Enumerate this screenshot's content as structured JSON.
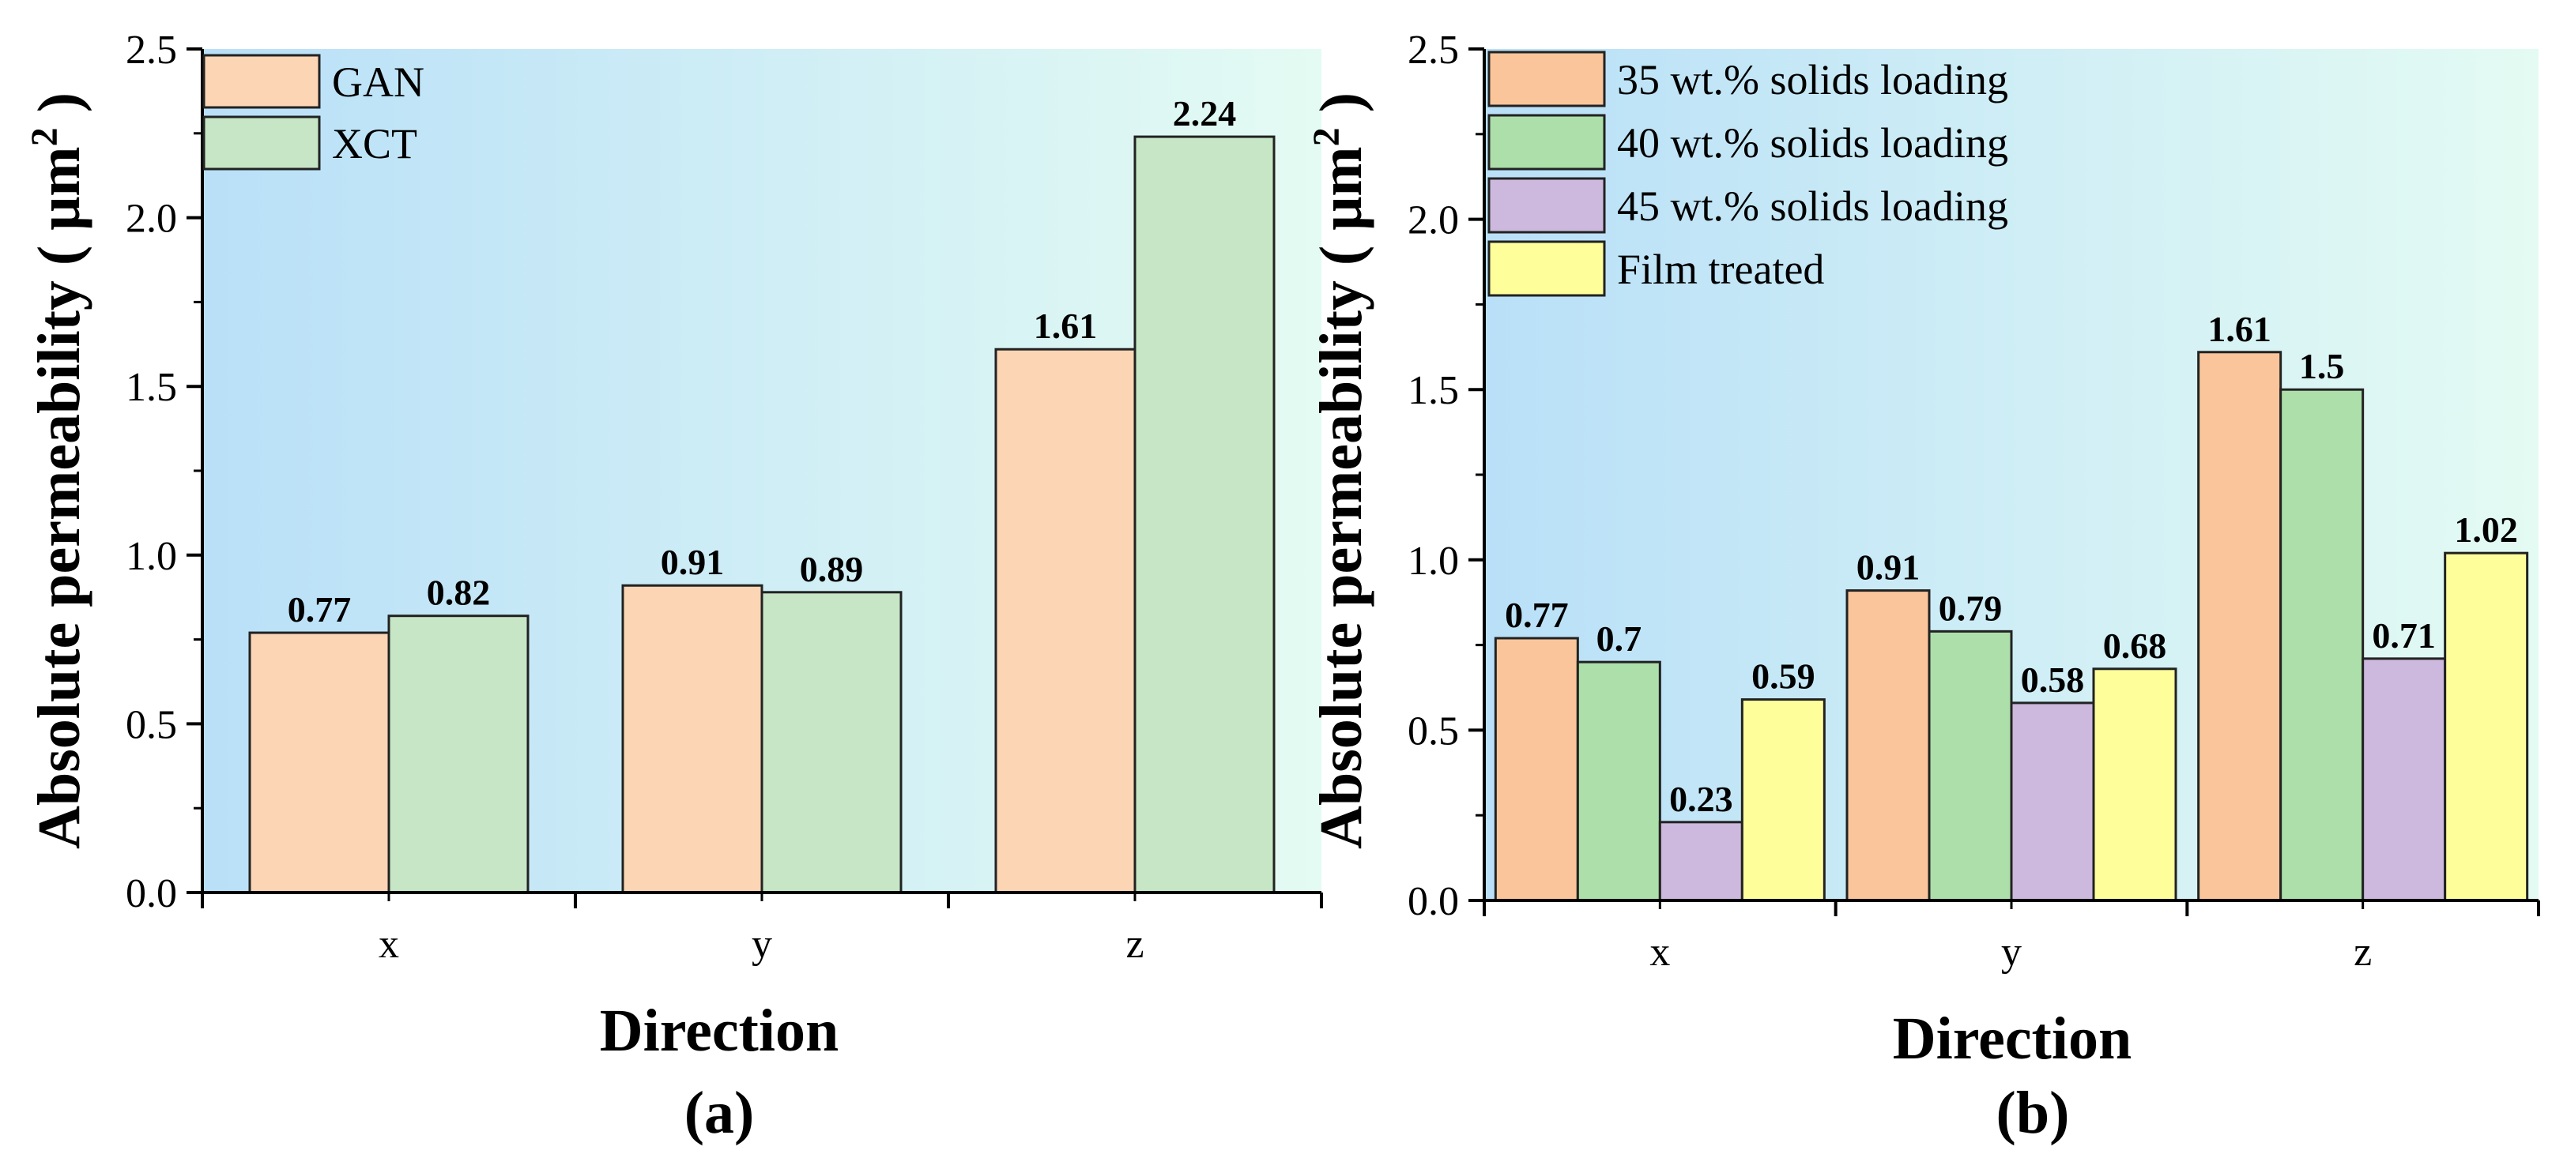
{
  "chart_data": [
    {
      "type": "bar",
      "panel_label": "(a)",
      "xlabel": "Direction",
      "ylabel": "Absolute permeability ( μm",
      "ylabel_sup": "2",
      "ylabel_close": ")",
      "ylim": [
        0,
        2.5
      ],
      "yticks": [
        "0.0",
        "0.5",
        "1.0",
        "1.5",
        "2.0",
        "2.5"
      ],
      "categories": [
        "x",
        "y",
        "z"
      ],
      "legend_position": "top-left",
      "series": [
        {
          "name": "GAN",
          "color": "#fcd5b5",
          "values": [
            0.77,
            0.91,
            1.61
          ],
          "labels": [
            "0.77",
            "0.91",
            "1.61"
          ]
        },
        {
          "name": "XCT",
          "color": "#c6e6c6",
          "values": [
            0.82,
            0.89,
            2.24
          ],
          "labels": [
            "0.82",
            "0.89",
            "2.24"
          ]
        }
      ]
    },
    {
      "type": "bar",
      "panel_label": "(b)",
      "xlabel": "Direction",
      "ylabel": "Absolute permeability ( μm",
      "ylabel_sup": "2",
      "ylabel_close": ")",
      "ylim": [
        0,
        2.5
      ],
      "yticks": [
        "0.0",
        "0.5",
        "1.0",
        "1.5",
        "2.0",
        "2.5"
      ],
      "categories": [
        "x",
        "y",
        "z"
      ],
      "legend_position": "top-left",
      "series": [
        {
          "name": "35 wt.% solids loading",
          "color": "#fac59a",
          "values": [
            0.77,
            0.91,
            1.61
          ],
          "labels": [
            "0.77",
            "0.91",
            "1.61"
          ]
        },
        {
          "name": "40 wt.% solids loading",
          "color": "#acdfa9",
          "values": [
            0.7,
            0.79,
            1.5
          ],
          "labels": [
            "0.7",
            "0.79",
            "1.5"
          ]
        },
        {
          "name": "45 wt.% solids loading",
          "color": "#cdb9dd",
          "values": [
            0.23,
            0.58,
            0.71
          ],
          "labels": [
            "0.23",
            "0.58",
            "0.71"
          ]
        },
        {
          "name": "Film treated",
          "color": "#fefe9b",
          "values": [
            0.59,
            0.68,
            1.02
          ],
          "labels": [
            "0.59",
            "0.68",
            "1.02"
          ]
        }
      ]
    }
  ]
}
